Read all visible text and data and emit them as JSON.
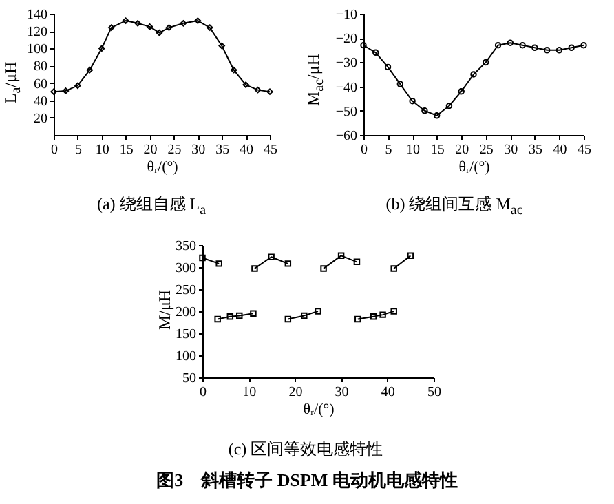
{
  "chart_data": [
    {
      "type": "line",
      "title": "(a) 绕组自感 L$_{a}$",
      "xlabel": "θᵣ/(°)",
      "ylabel": "L$_{a}$/μH",
      "xlim": [
        0,
        45
      ],
      "xticks": [
        0,
        5,
        10,
        15,
        20,
        25,
        30,
        35,
        40,
        45
      ],
      "ylim": [
        0,
        140
      ],
      "yticks": [
        20,
        40,
        60,
        80,
        100,
        120,
        140
      ],
      "marker": "diamond",
      "series": [
        {
          "color": "#000000",
          "x": [
            0,
            2.5,
            5,
            7.5,
            10,
            12,
            15,
            17.5,
            20,
            22,
            24,
            27,
            30,
            32.5,
            35,
            37.5,
            40,
            42.5,
            45
          ],
          "values": [
            50,
            51,
            57,
            75,
            100,
            124,
            132,
            129,
            125,
            118,
            124,
            129,
            132,
            124,
            103,
            75,
            58,
            52,
            50
          ]
        }
      ]
    },
    {
      "type": "line",
      "title": "(b) 绕组间互感 M$_{ac}$",
      "xlabel": "θᵣ/(°)",
      "ylabel": "M$_{ac}$/μH",
      "xlim": [
        0,
        45
      ],
      "xticks": [
        0,
        5,
        10,
        15,
        20,
        25,
        30,
        35,
        40,
        45
      ],
      "ylim": [
        -60,
        -10
      ],
      "yticks": [
        -60,
        -50,
        -40,
        -30,
        -20,
        -10
      ],
      "marker": "circle",
      "series": [
        {
          "color": "#000000",
          "x": [
            0,
            2.5,
            5,
            7.5,
            10,
            12.5,
            15,
            17.5,
            20,
            22.5,
            25,
            27.5,
            30,
            32.5,
            35,
            37.5,
            40,
            42.5,
            45
          ],
          "values": [
            -23,
            -26,
            -32,
            -39,
            -46,
            -50,
            -52,
            -48,
            -42,
            -35,
            -30,
            -23,
            -22,
            -23,
            -24,
            -25,
            -25,
            -24,
            -23
          ]
        }
      ]
    },
    {
      "type": "line",
      "title": "(c) 区间等效电感特性",
      "xlabel": "θᵣ/(°)",
      "ylabel": "M/μH",
      "xlim": [
        0,
        50
      ],
      "xticks": [
        0,
        10,
        20,
        30,
        40,
        50
      ],
      "ylim": [
        50,
        350
      ],
      "yticks": [
        50,
        100,
        150,
        200,
        250,
        300,
        350
      ],
      "marker": "square",
      "annotations": [
        "图3　斜槽转子 DSPM 电动机电感特性"
      ],
      "series": [
        {
          "color": "#000000",
          "x": [
            0,
            3.6
          ],
          "values": [
            321,
            308
          ]
        },
        {
          "color": "#000000",
          "x": [
            11.3,
            14.9,
            18.5
          ],
          "values": [
            297,
            323,
            308
          ]
        },
        {
          "color": "#000000",
          "x": [
            26.2,
            30,
            33.4
          ],
          "values": [
            297,
            326,
            312
          ]
        },
        {
          "color": "#000000",
          "x": [
            41.4,
            45
          ],
          "values": [
            297,
            326
          ]
        },
        {
          "color": "#000000",
          "x": [
            3.3,
            6,
            8,
            11
          ],
          "values": [
            182,
            188,
            190,
            195
          ]
        },
        {
          "color": "#000000",
          "x": [
            18.5,
            22,
            25
          ],
          "values": [
            182,
            190,
            200
          ]
        },
        {
          "color": "#000000",
          "x": [
            33.6,
            37,
            39,
            41.4
          ],
          "values": [
            182,
            188,
            192,
            200
          ]
        }
      ]
    }
  ]
}
